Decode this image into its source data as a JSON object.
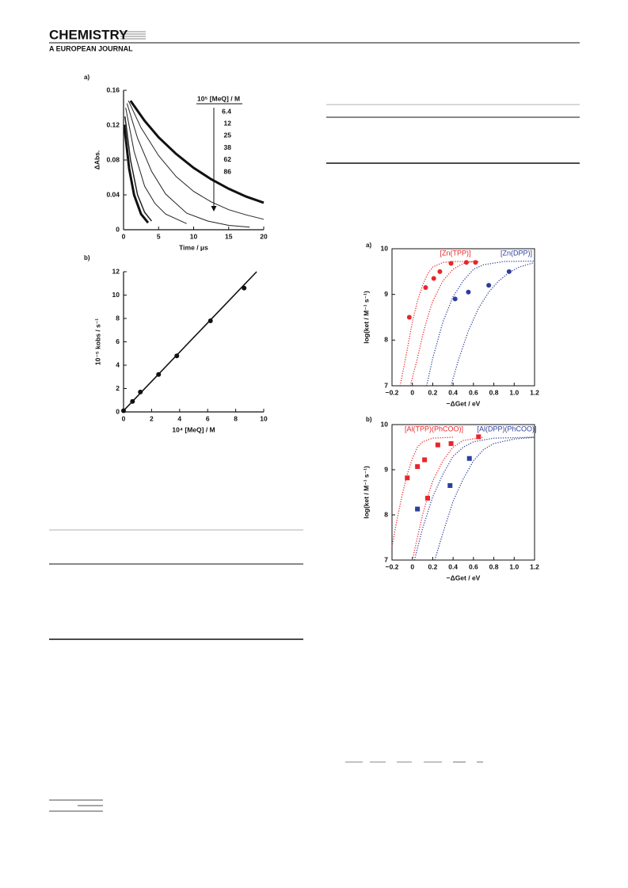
{
  "header": {
    "journal": "CHEMISTRY",
    "subtitle": "A EUROPEAN JOURNAL"
  },
  "chart_data": [
    {
      "type": "line",
      "panel_label": "a)",
      "xlabel": "Time / μs",
      "ylabel": "ΔAbs.",
      "xlim": [
        0,
        20
      ],
      "xticks": [
        0,
        5,
        10,
        15,
        20
      ],
      "ylim": [
        0,
        0.16
      ],
      "yticks": [
        0,
        0.04,
        0.08,
        0.12,
        0.16
      ],
      "legend_title": "10⁵ [MeQ] / M",
      "series": [
        {
          "name": "6.4",
          "color": "#111111",
          "width": 3,
          "x": [
            1,
            3,
            5,
            7.5,
            10,
            12.5,
            15,
            17.5,
            20
          ],
          "values": [
            0.148,
            0.125,
            0.106,
            0.087,
            0.071,
            0.058,
            0.047,
            0.038,
            0.031
          ]
        },
        {
          "name": "12",
          "color": "#222222",
          "width": 1,
          "x": [
            0.7,
            2.5,
            5,
            7.5,
            10,
            12.5,
            15,
            17.5,
            20
          ],
          "values": [
            0.148,
            0.117,
            0.085,
            0.061,
            0.044,
            0.032,
            0.023,
            0.017,
            0.012
          ]
        },
        {
          "name": "25",
          "color": "#222222",
          "width": 1,
          "x": [
            0.5,
            2,
            4,
            6,
            9,
            12,
            15,
            18
          ],
          "values": [
            0.145,
            0.105,
            0.067,
            0.041,
            0.019,
            0.01,
            0.005,
            0.003
          ]
        },
        {
          "name": "38",
          "color": "#222222",
          "width": 1,
          "x": [
            0.3,
            1.5,
            3,
            4.5,
            6,
            9
          ],
          "values": [
            0.14,
            0.09,
            0.05,
            0.03,
            0.018,
            0.007
          ]
        },
        {
          "name": "62",
          "color": "#222222",
          "width": 1.5,
          "x": [
            0.2,
            1,
            2,
            3,
            4
          ],
          "values": [
            0.13,
            0.08,
            0.04,
            0.02,
            0.01
          ]
        },
        {
          "name": "86",
          "color": "#111111",
          "width": 3,
          "x": [
            0.1,
            0.8,
            1.5,
            2.5,
            3.5
          ],
          "values": [
            0.12,
            0.07,
            0.04,
            0.018,
            0.008
          ]
        }
      ]
    },
    {
      "type": "scatter",
      "panel_label": "b)",
      "xlabel": "10⁴ [MeQ] / M",
      "ylabel": "10⁻⁵ kobs / s⁻¹",
      "xlim": [
        0,
        10
      ],
      "xticks": [
        0,
        2,
        4,
        6,
        8,
        10
      ],
      "ylim": [
        0,
        12
      ],
      "yticks": [
        0,
        2,
        4,
        6,
        8,
        10,
        12
      ],
      "series": [
        {
          "color": "#111111",
          "marker": "circle",
          "x": [
            0,
            0.64,
            1.2,
            2.5,
            3.8,
            6.2,
            8.6
          ],
          "values": [
            0.1,
            0.9,
            1.7,
            3.2,
            4.8,
            7.8,
            10.6
          ]
        }
      ],
      "fits": [
        {
          "color": "#111111",
          "style": "solid",
          "x": [
            0,
            9.5
          ],
          "values": [
            0.1,
            12
          ]
        }
      ]
    },
    {
      "type": "scatter",
      "panel_label": "a)",
      "xlabel": "−ΔGet / eV",
      "ylabel": "log(ket / M⁻¹ s⁻¹)",
      "xlim": [
        -0.2,
        1.2
      ],
      "xticks": [
        {
          "value": -0.2,
          "label": "−0.2"
        },
        0,
        0.2,
        0.4,
        0.6,
        0.8,
        {
          "value": 1,
          "label": "1.0"
        },
        1.2
      ],
      "ylim": [
        7,
        10
      ],
      "yticks": [
        7,
        8,
        9,
        10
      ],
      "series": [
        {
          "name": "[Zn(TPP)]",
          "color": "#e8262a",
          "marker": "circle",
          "x": [
            -0.03,
            0.13,
            0.21,
            0.27,
            0.38,
            0.53,
            0.62
          ],
          "values": [
            8.5,
            9.15,
            9.35,
            9.5,
            9.68,
            9.7,
            9.7
          ]
        },
        {
          "name": "[Zn(DPP)]",
          "color": "#2d3e9a",
          "marker": "circle",
          "x": [
            0.42,
            0.55,
            0.75,
            0.95
          ],
          "values": [
            8.9,
            9.05,
            9.2,
            9.5
          ]
        }
      ],
      "fits": [
        {
          "color": "#e8262a",
          "style": "dotted",
          "x": [
            -0.12,
            -0.05,
            0,
            0.05,
            0.1,
            0.15,
            0.2,
            0.3,
            0.4,
            0.6
          ],
          "values": [
            7,
            7.8,
            8.4,
            8.85,
            9.2,
            9.45,
            9.6,
            9.7,
            9.72,
            9.72
          ]
        },
        {
          "color": "#e8262a",
          "style": "dotted",
          "x": [
            -0.02,
            0.05,
            0.1,
            0.15,
            0.2,
            0.3,
            0.4,
            0.5,
            0.6,
            0.65
          ],
          "values": [
            7,
            7.6,
            8.1,
            8.5,
            8.85,
            9.3,
            9.55,
            9.68,
            9.72,
            9.72
          ]
        },
        {
          "color": "#2d3e9a",
          "style": "dotted",
          "x": [
            0.14,
            0.2,
            0.3,
            0.4,
            0.5,
            0.6,
            0.7,
            0.9,
            1.2
          ],
          "values": [
            7,
            7.6,
            8.4,
            8.95,
            9.3,
            9.55,
            9.65,
            9.72,
            9.73
          ]
        },
        {
          "color": "#2d3e9a",
          "style": "dotted",
          "x": [
            0.38,
            0.45,
            0.55,
            0.65,
            0.75,
            0.85,
            0.95,
            1.05,
            1.2
          ],
          "values": [
            7,
            7.55,
            8.2,
            8.7,
            9.05,
            9.3,
            9.48,
            9.6,
            9.7
          ]
        }
      ]
    },
    {
      "type": "scatter",
      "panel_label": "b)",
      "xlabel": "−ΔGet / eV",
      "ylabel": "log(ket / M⁻¹ s⁻¹)",
      "xlim": [
        -0.2,
        1.2
      ],
      "xticks": [
        {
          "value": -0.2,
          "label": "−0.2"
        },
        0,
        0.2,
        0.4,
        0.6,
        0.8,
        {
          "value": 1,
          "label": "1.0"
        },
        1.2
      ],
      "ylim": [
        7,
        10
      ],
      "yticks": [
        7,
        8,
        9,
        10
      ],
      "series": [
        {
          "name": "[Al(TPP)(PhCOO)]",
          "color": "#e8262a",
          "marker": "square",
          "x": [
            -0.05,
            0.05,
            0.12,
            0.15,
            0.25,
            0.38,
            0.65
          ],
          "values": [
            8.82,
            9.07,
            9.22,
            8.37,
            9.55,
            9.58,
            9.73
          ]
        },
        {
          "name": "[Al(DPP)(PhCOO)]",
          "color": "#2d3e9a",
          "marker": "square",
          "x": [
            0.05,
            0.37,
            0.56
          ],
          "values": [
            8.13,
            8.65,
            9.25
          ]
        }
      ],
      "fits": [
        {
          "color": "#e8262a",
          "style": "dotted",
          "x": [
            -0.2,
            -0.15,
            -0.1,
            -0.05,
            0,
            0.05,
            0.1,
            0.2,
            0.4
          ],
          "values": [
            7.3,
            7.9,
            8.45,
            8.9,
            9.25,
            9.5,
            9.62,
            9.7,
            9.72
          ]
        },
        {
          "color": "#e8262a",
          "style": "dotted",
          "x": [
            0,
            0.05,
            0.1,
            0.15,
            0.2,
            0.3,
            0.4,
            0.5,
            0.7
          ],
          "values": [
            7,
            7.5,
            8,
            8.4,
            8.75,
            9.2,
            9.5,
            9.65,
            9.72
          ]
        },
        {
          "color": "#2d3e9a",
          "style": "dotted",
          "x": [
            0.02,
            0.1,
            0.2,
            0.3,
            0.4,
            0.5,
            0.6,
            0.8,
            1.2
          ],
          "values": [
            7,
            7.7,
            8.4,
            8.9,
            9.3,
            9.5,
            9.62,
            9.7,
            9.72
          ]
        },
        {
          "color": "#2d3e9a",
          "style": "dotted",
          "x": [
            0.22,
            0.3,
            0.4,
            0.5,
            0.6,
            0.7,
            0.8,
            1,
            1.2
          ],
          "values": [
            7,
            7.6,
            8.3,
            8.8,
            9.2,
            9.45,
            9.58,
            9.68,
            9.72
          ]
        }
      ]
    }
  ]
}
